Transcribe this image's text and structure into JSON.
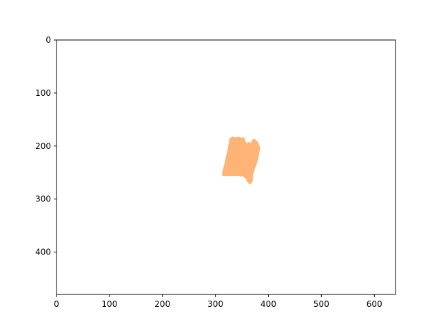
{
  "chart_data": {
    "type": "image",
    "title": "",
    "xlabel": "",
    "ylabel": "",
    "xlim": [
      0,
      640
    ],
    "ylim": [
      480,
      0
    ],
    "x_inverted": false,
    "y_inverted": true,
    "grid": false,
    "x_ticks": [
      {
        "value": 0,
        "label": "0"
      },
      {
        "value": 100,
        "label": "100"
      },
      {
        "value": 200,
        "label": "200"
      },
      {
        "value": 300,
        "label": "300"
      },
      {
        "value": 400,
        "label": "400"
      },
      {
        "value": 500,
        "label": "500"
      },
      {
        "value": 600,
        "label": "600"
      }
    ],
    "y_ticks": [
      {
        "value": 0,
        "label": "0"
      },
      {
        "value": 100,
        "label": "100"
      },
      {
        "value": 200,
        "label": "200"
      },
      {
        "value": 300,
        "label": "300"
      },
      {
        "value": 400,
        "label": "400"
      }
    ],
    "regions": [
      {
        "name": "mask-region",
        "color": "#ffb477",
        "polygon": [
          [
            323,
            210
          ],
          [
            325,
            199
          ],
          [
            327,
            186
          ],
          [
            332,
            183
          ],
          [
            338,
            184
          ],
          [
            343,
            183
          ],
          [
            349,
            185
          ],
          [
            354,
            184
          ],
          [
            356,
            190
          ],
          [
            358,
            196
          ],
          [
            363,
            193
          ],
          [
            367,
            195
          ],
          [
            369,
            191
          ],
          [
            371,
            187
          ],
          [
            375,
            188
          ],
          [
            380,
            193
          ],
          [
            384,
            203
          ],
          [
            382,
            214
          ],
          [
            380,
            225
          ],
          [
            377,
            235
          ],
          [
            373,
            245
          ],
          [
            370,
            256
          ],
          [
            370,
            266
          ],
          [
            366,
            272
          ],
          [
            361,
            268
          ],
          [
            358,
            262
          ],
          [
            353,
            257
          ],
          [
            345,
            256
          ],
          [
            335,
            256
          ],
          [
            325,
            256
          ],
          [
            314,
            256
          ],
          [
            313,
            251
          ],
          [
            316,
            240
          ],
          [
            319,
            228
          ]
        ]
      }
    ]
  }
}
